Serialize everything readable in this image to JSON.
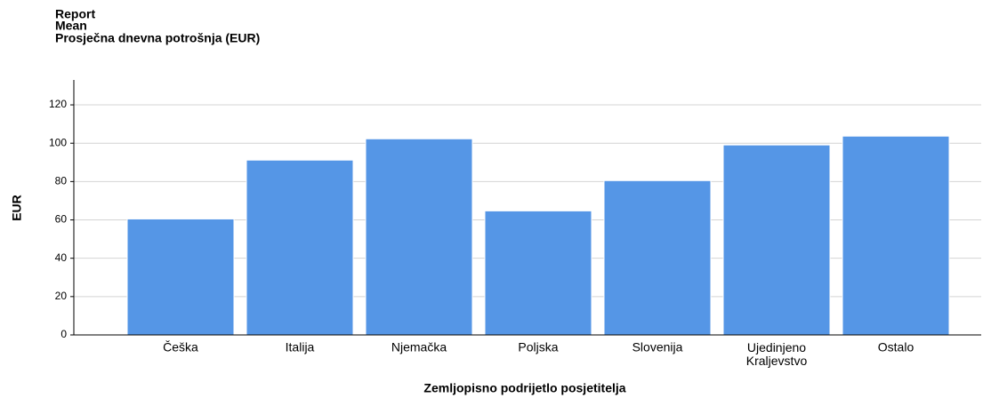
{
  "chart_data": {
    "type": "bar",
    "title": [
      "Report",
      "Mean",
      "Prosječna dnevna potrošnja (EUR)"
    ],
    "y_label": "EUR",
    "x_label": "Zemljopisno podrijetlo posjetitelja",
    "categories": [
      "Češka",
      "Italija",
      "Njemačka",
      "Poljska",
      "Slovenija",
      "Ujedinjeno Kraljevstvo",
      "Ostalo"
    ],
    "values": [
      60.5,
      91.2,
      102.3,
      64.7,
      80.5,
      99.1,
      103.7
    ],
    "color": "#5596e6",
    "ylim": [
      0,
      133
    ],
    "yticks": [
      0,
      20,
      40,
      60,
      80,
      100,
      120
    ],
    "grid": true
  }
}
